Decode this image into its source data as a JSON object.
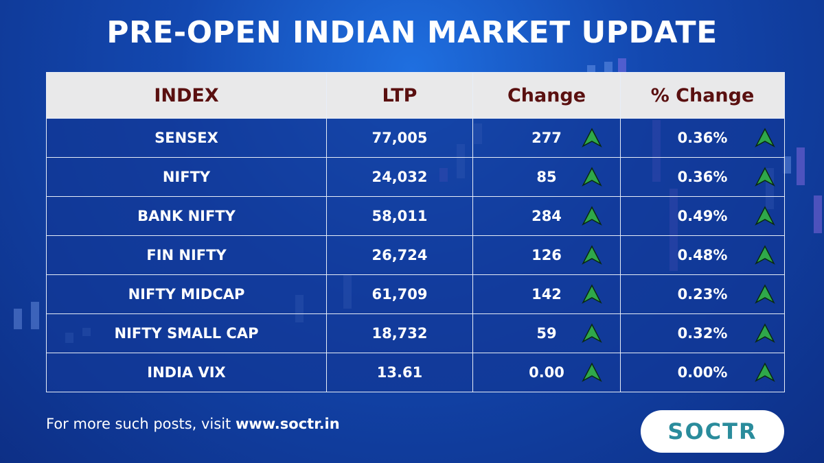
{
  "header": {
    "title": "PRE-OPEN INDIAN MARKET UPDATE"
  },
  "table": {
    "columns": [
      "INDEX",
      "LTP",
      "Change",
      "% Change"
    ],
    "rows": [
      [
        "SENSEX",
        "77,005",
        "277",
        "0.36%"
      ],
      [
        "NIFTY",
        "24,032",
        "85",
        "0.36%"
      ],
      [
        "BANK NIFTY",
        "58,011",
        "284",
        "0.49%"
      ],
      [
        "FIN NIFTY",
        "26,724",
        "126",
        "0.48%"
      ],
      [
        "NIFTY MIDCAP",
        "61,709",
        "142",
        "0.23%"
      ],
      [
        "NIFTY SMALL CAP",
        "18,732",
        "59",
        "0.32%"
      ],
      [
        "INDIA VIX",
        "13.61",
        "0.00",
        "0.00%"
      ]
    ]
  },
  "footer": {
    "text": "For more such posts, visit",
    "link": "www.soctr.in",
    "logo": "SOCTR"
  }
}
